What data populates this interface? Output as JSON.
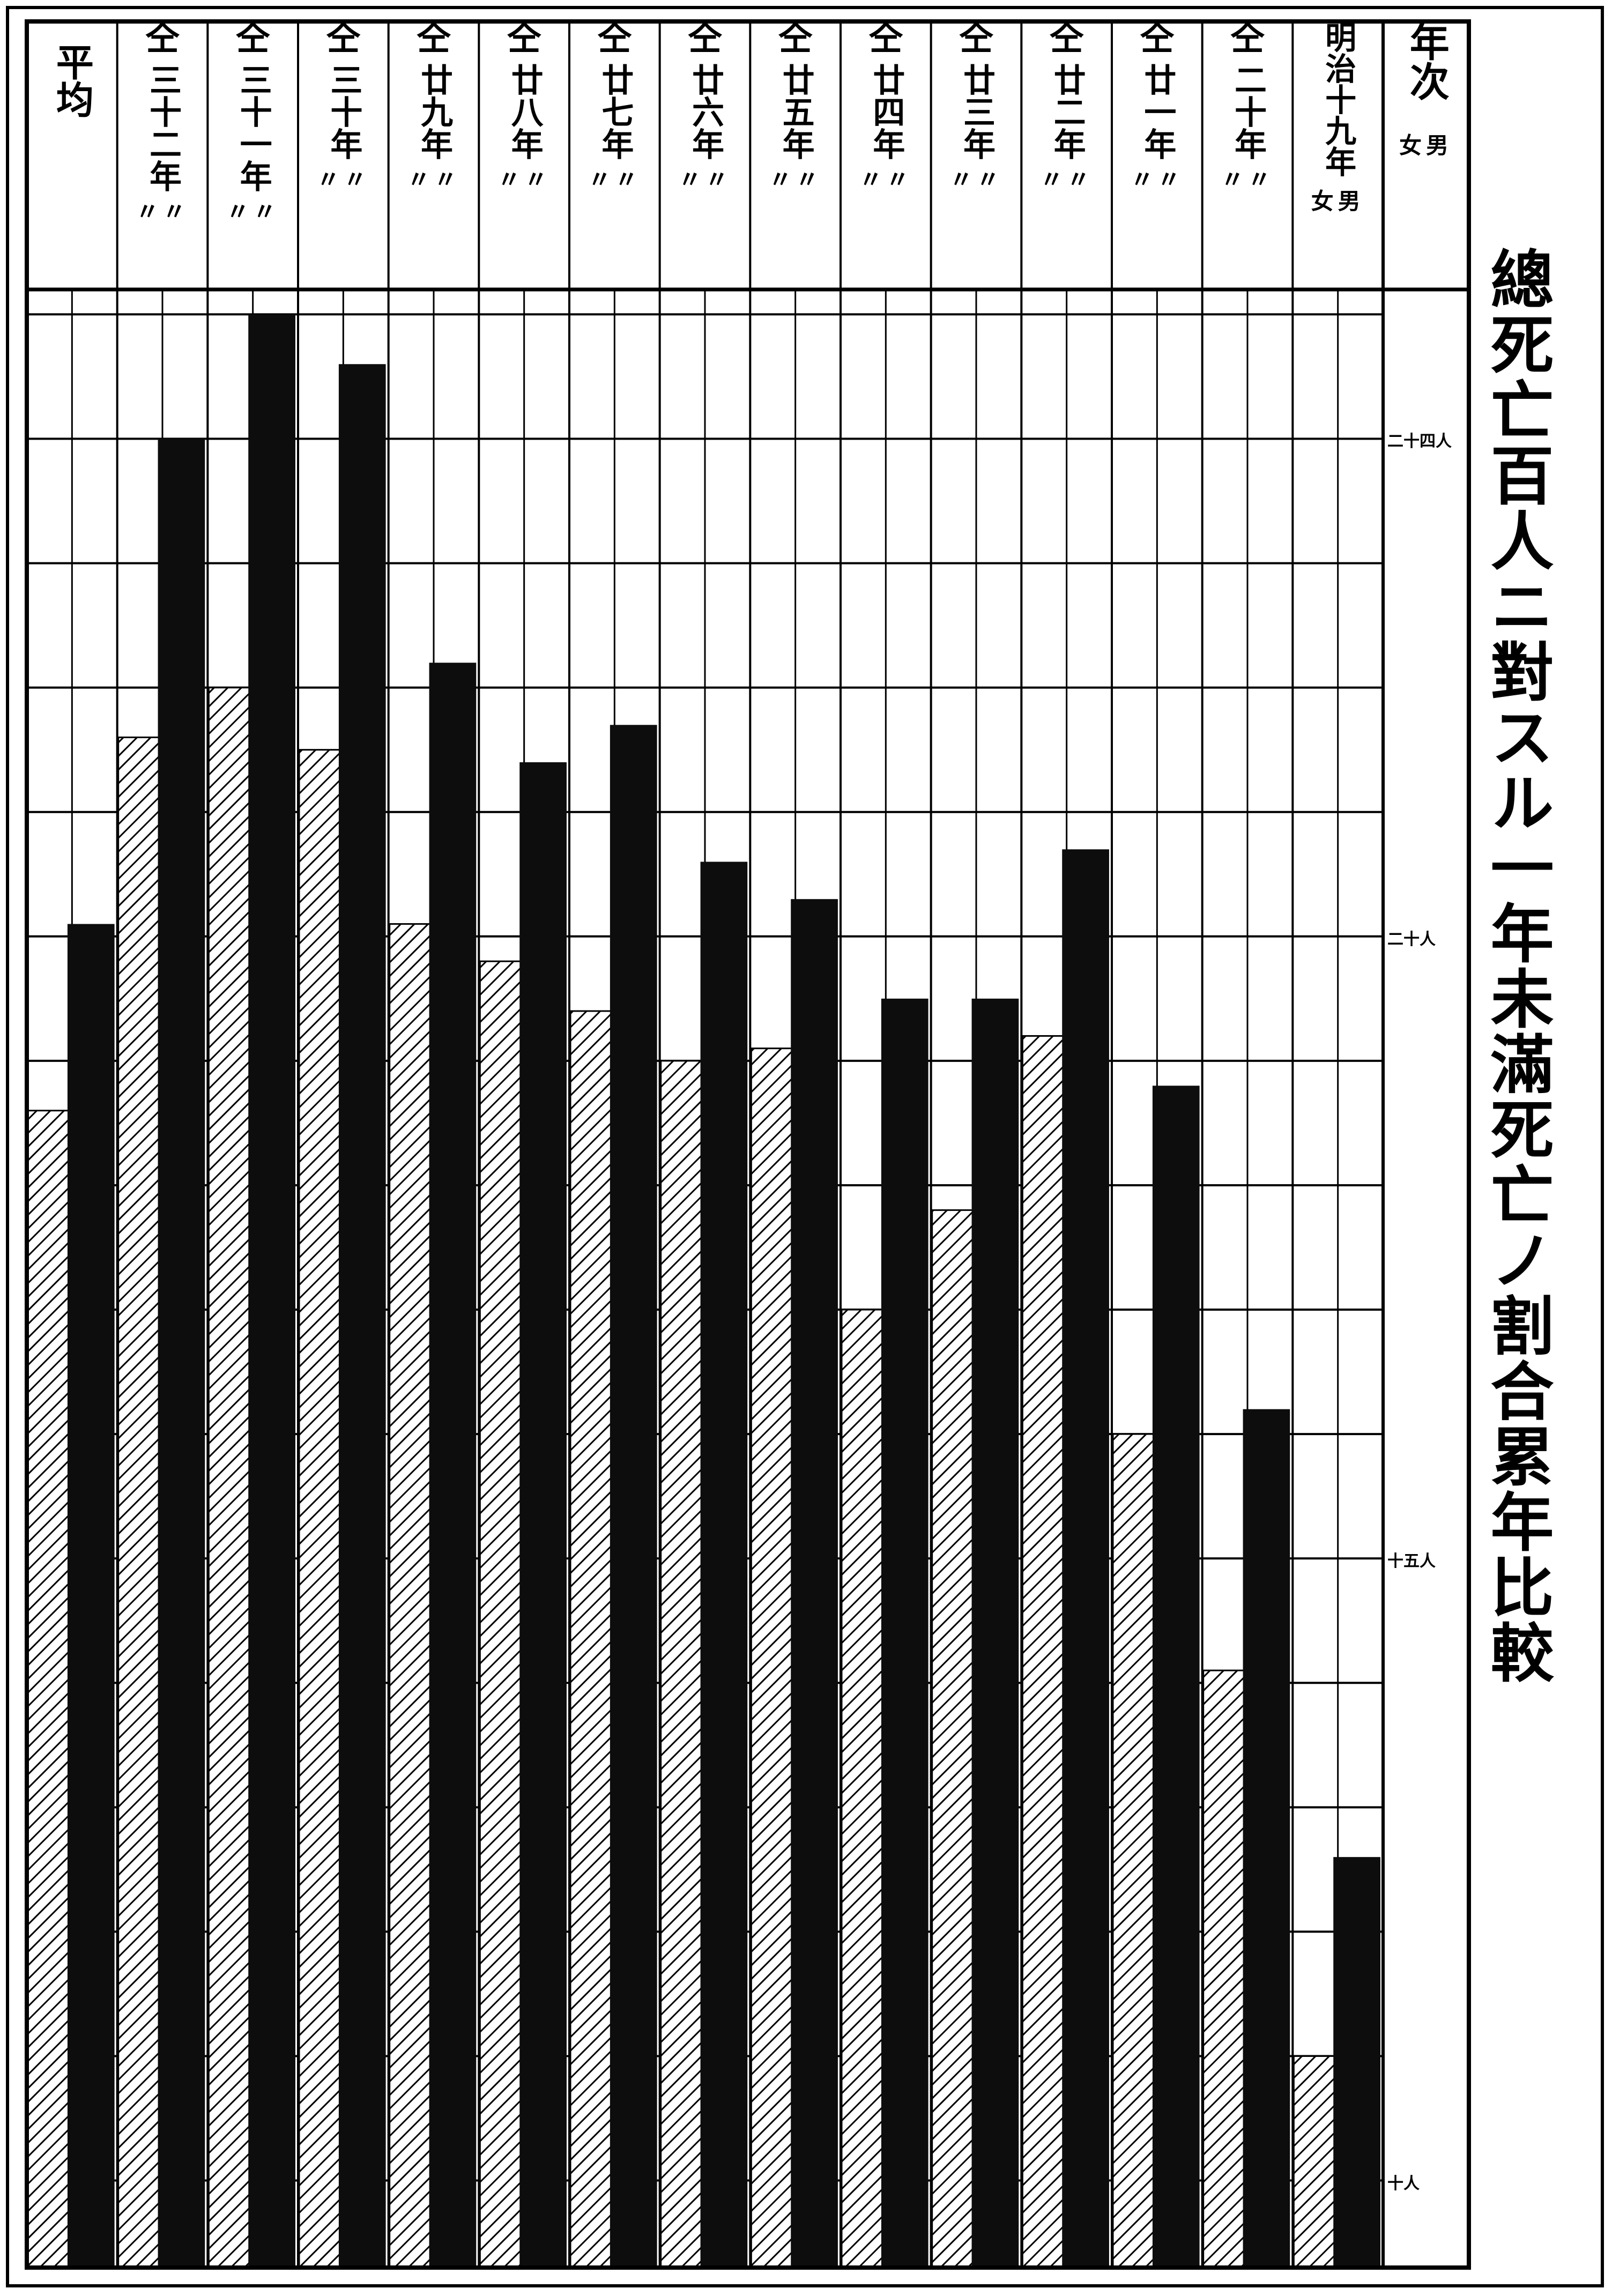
{
  "title": "總死亡百人ニ對スル一年未滿死亡ノ割合累年比較",
  "header": {
    "nenji": "年次",
    "nenji_sex": "女男",
    "same_mark": "仝",
    "ditto_mark": "〃〃",
    "average": "平均",
    "first_year_sex": "女男"
  },
  "legend": {
    "female_pattern": "hatched",
    "male_pattern": "solid-black"
  },
  "colors": {
    "ink": "#000000",
    "paper": "#ffffff",
    "male": "#0d0d0d",
    "female_hatch": "#000000"
  },
  "chart_data": {
    "type": "bar",
    "title": "總死亡百人ニ對スル一年未滿死亡ノ割合累年比較",
    "categories": [
      "平均",
      "三十二年",
      "三十一年",
      "三十年",
      "廿九年",
      "廿八年",
      "廿七年",
      "廿六年",
      "廿五年",
      "廿四年",
      "廿三年",
      "廿二年",
      "廿一年",
      "二十年",
      "明治十九年"
    ],
    "series": [
      {
        "name": "女",
        "pattern": "hatched",
        "values": [
          18.6,
          21.6,
          22.0,
          21.5,
          20.1,
          19.8,
          19.4,
          19.0,
          19.1,
          17.0,
          17.8,
          19.2,
          16.0,
          14.1,
          11.0
        ]
      },
      {
        "name": "男",
        "pattern": "solid",
        "values": [
          20.1,
          24.0,
          25.0,
          24.6,
          22.2,
          21.4,
          21.7,
          20.6,
          20.3,
          19.5,
          19.5,
          20.7,
          18.8,
          16.2,
          12.6
        ]
      }
    ],
    "yticks": [
      {
        "value": 24,
        "label": "二十四人"
      },
      {
        "value": 20,
        "label": "二十人"
      },
      {
        "value": 15,
        "label": "十五人"
      },
      {
        "value": 10,
        "label": "十人"
      }
    ],
    "ylim": [
      9.3,
      25.2
    ],
    "grid": true
  }
}
